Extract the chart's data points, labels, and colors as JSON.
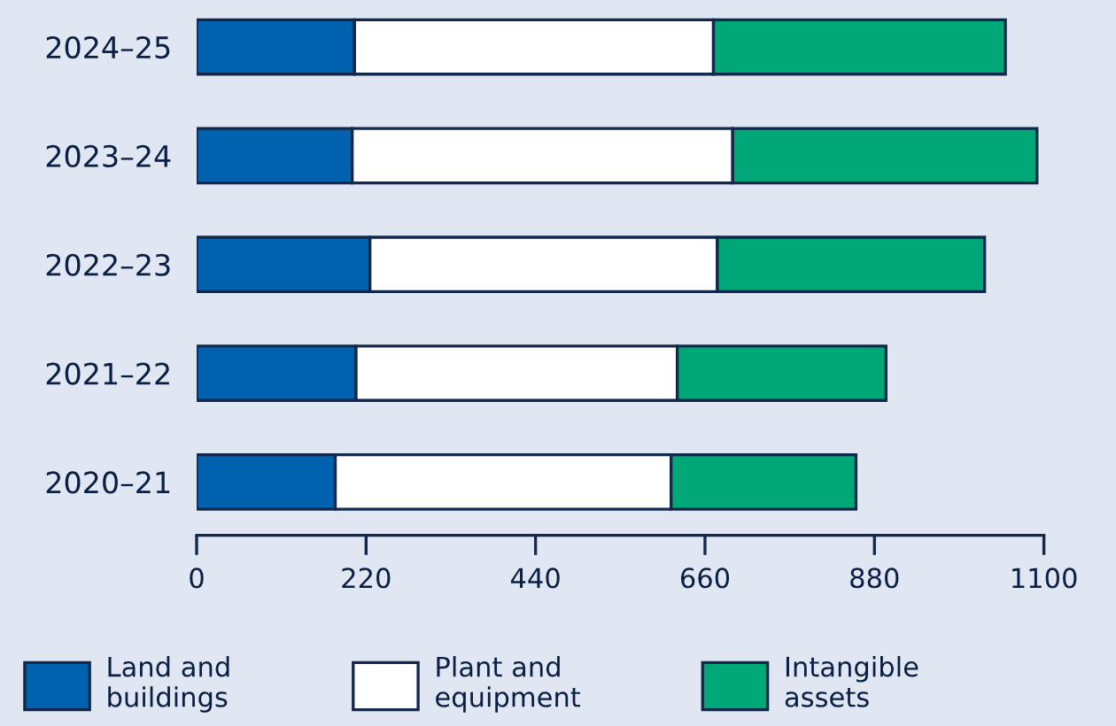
{
  "chart_data": {
    "type": "bar",
    "orientation": "horizontal",
    "stacked": true,
    "categories": [
      "2024–25",
      "2023–24",
      "2022–23",
      "2021–22",
      "2020–21"
    ],
    "series": [
      {
        "name": "Land and\nbuildings",
        "color": "#0061af",
        "values": [
          205,
          202,
          225,
          207,
          180
        ]
      },
      {
        "name": "Plant and\nequipment",
        "color": "#ffffff",
        "values": [
          466,
          494,
          451,
          417,
          436
        ]
      },
      {
        "name": "Intangible\nassets",
        "color": "#00a878",
        "values": [
          379,
          395,
          347,
          271,
          240
        ]
      }
    ],
    "xlim": [
      0,
      1100
    ],
    "xticks": [
      0,
      220,
      440,
      660,
      880,
      1100
    ],
    "grid": false,
    "legend": "bottom"
  }
}
